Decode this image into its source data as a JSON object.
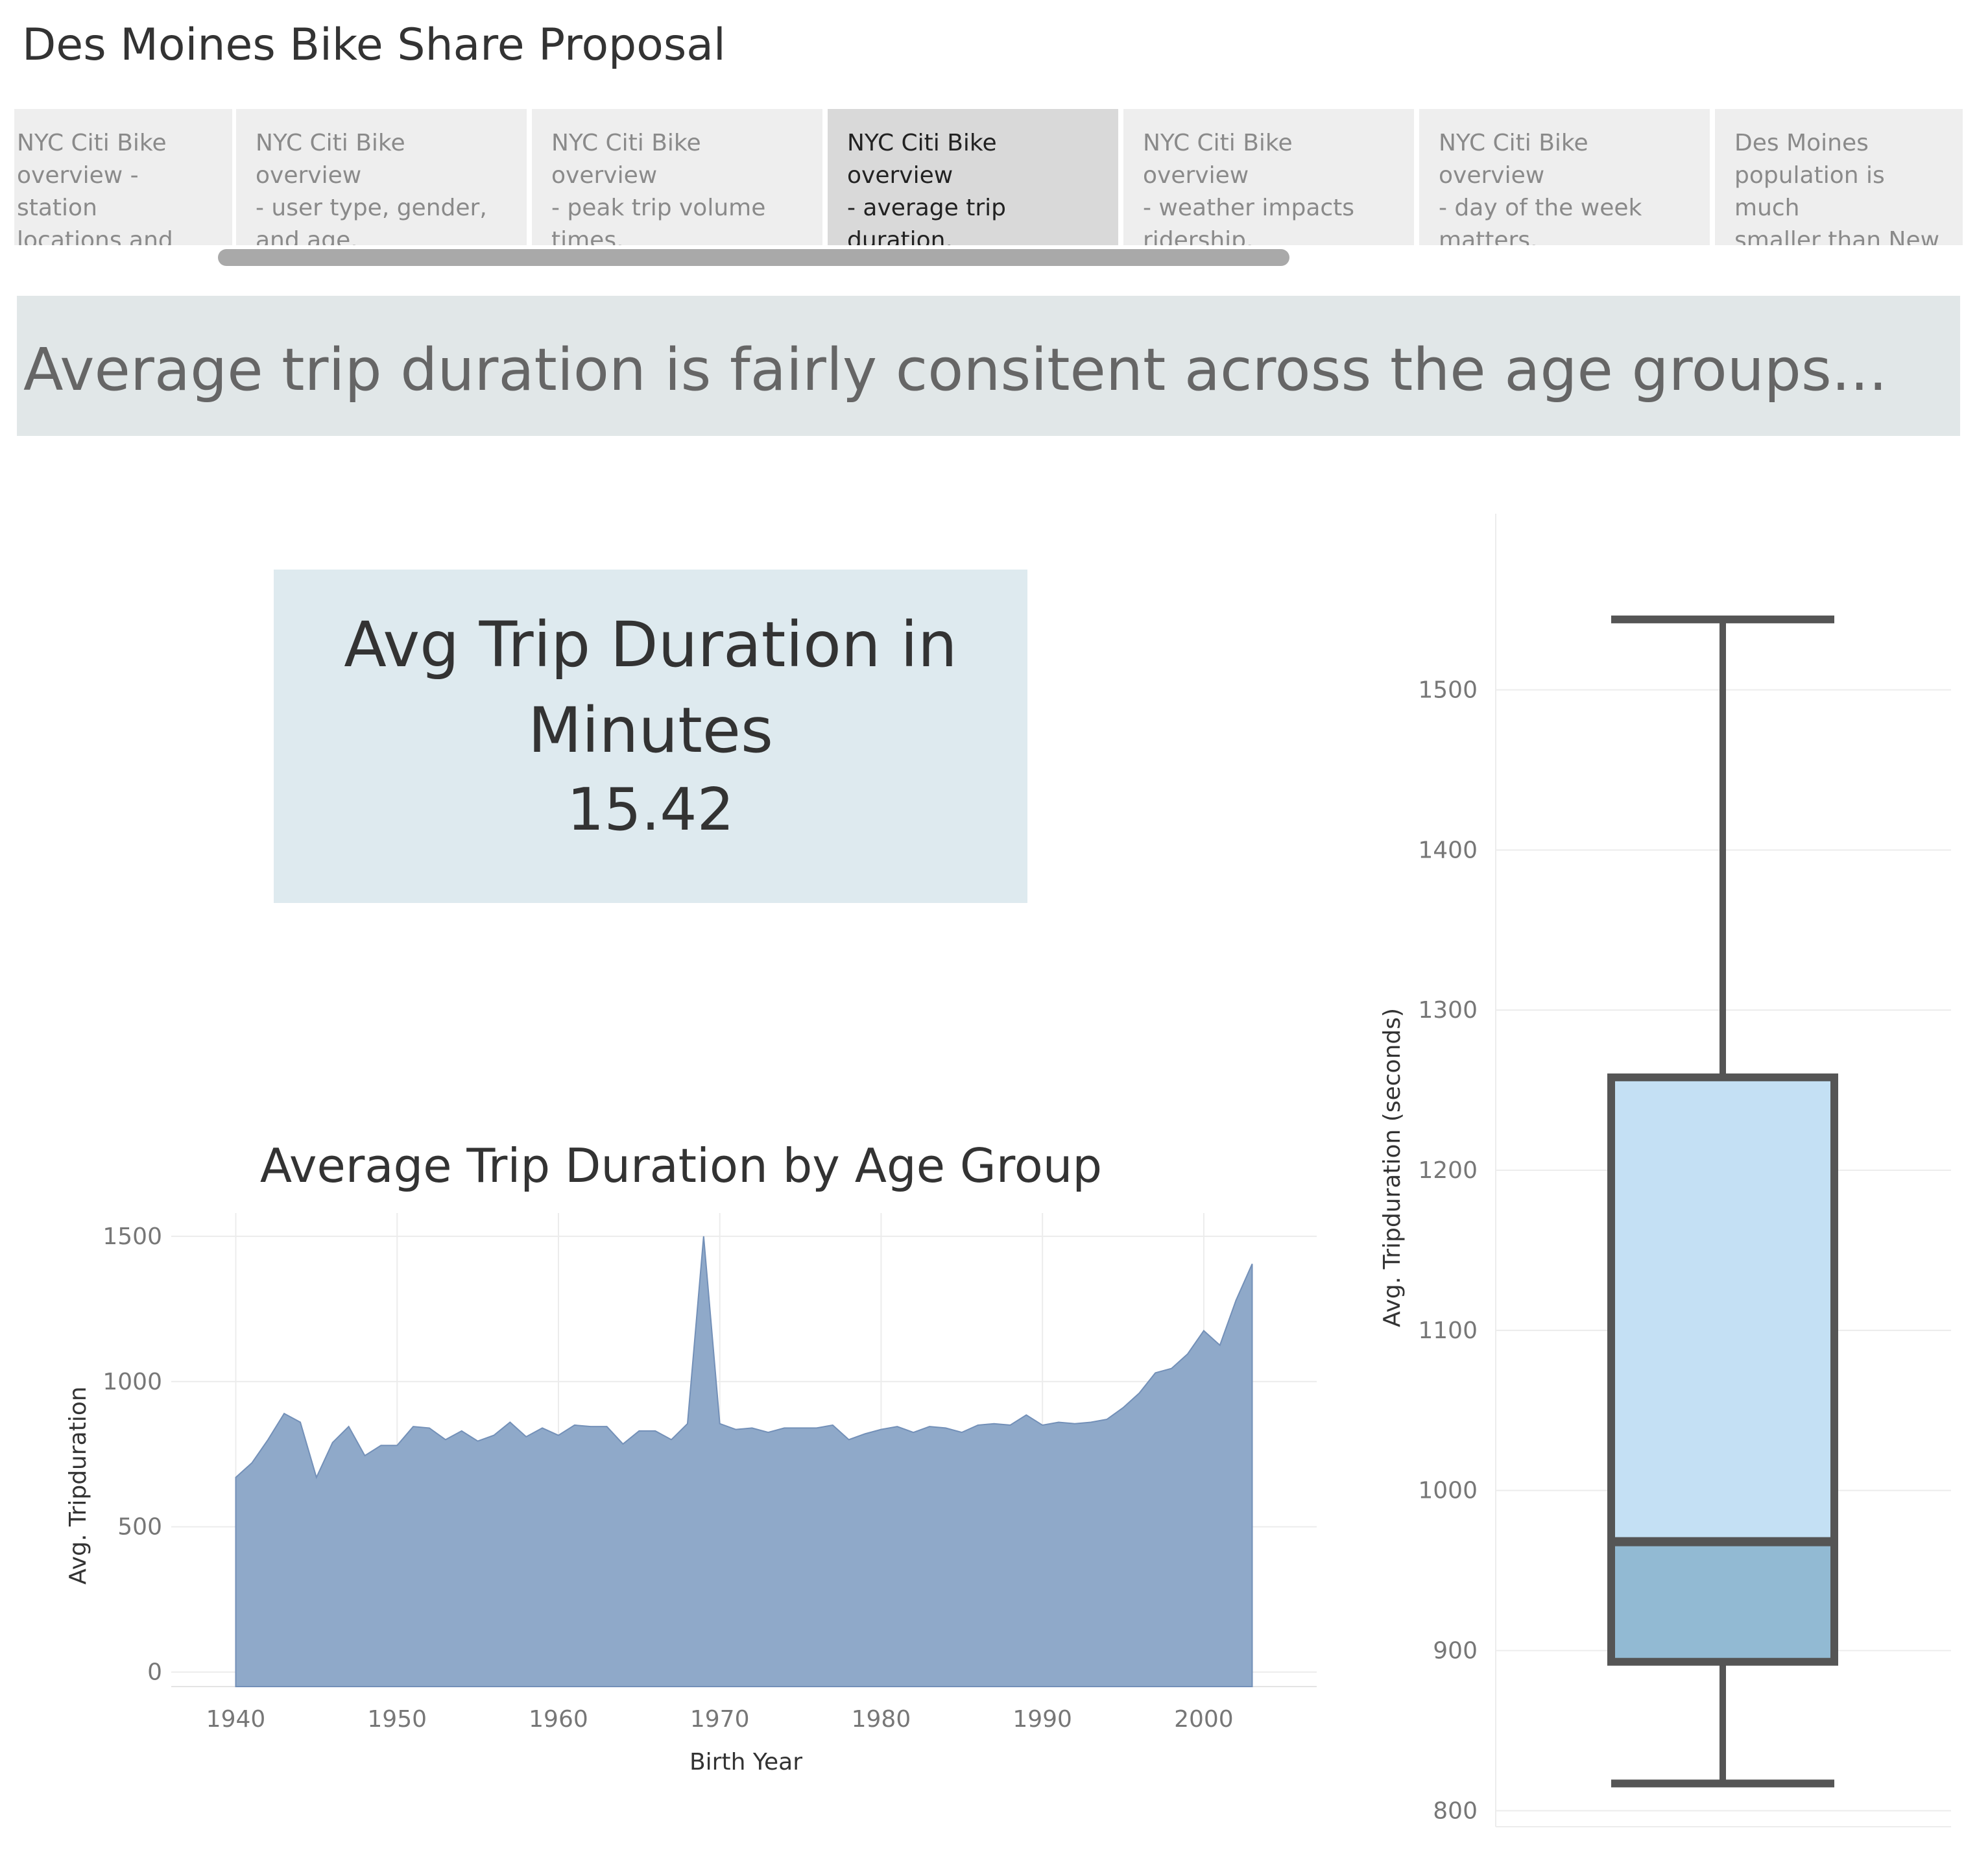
{
  "story": {
    "title": "Des Moines Bike Share Proposal",
    "points": [
      {
        "lines": [
          "NYC Citi Bike",
          "overview - station",
          "locations and us.."
        ]
      },
      {
        "lines": [
          "NYC Citi Bike overview",
          "- user type, gender,",
          "and age."
        ]
      },
      {
        "lines": [
          "NYC Citi Bike overview",
          "- peak trip volume",
          "times."
        ]
      },
      {
        "lines": [
          "NYC Citi Bike overview",
          "- average trip",
          "duration."
        ],
        "active": true
      },
      {
        "lines": [
          "NYC Citi Bike overview",
          "- weather impacts",
          "ridership."
        ]
      },
      {
        "lines": [
          "NYC Citi Bike overview",
          "- day of the week",
          "matters."
        ]
      },
      {
        "lines": [
          "Des Moines",
          "population is much",
          "smaller than New Y.."
        ]
      }
    ]
  },
  "caption": "Average trip duration is fairly consitent across the age groups...",
  "kpi": {
    "title_line1": "Avg Trip Duration in",
    "title_line2": "Minutes",
    "value": "15.42"
  },
  "colors": {
    "area_fill": "#8fa9c9",
    "area_stroke": "#7390b8",
    "box_upper": "#c4e0f4",
    "box_lower": "#92bad3",
    "box_stroke": "#555555"
  },
  "chart_data": [
    {
      "type": "area",
      "title": "Average Trip Duration by Age Group",
      "xlabel": "Birth Year",
      "ylabel": "Avg. Tripduration",
      "xlim": [
        1936,
        2007
      ],
      "ylim": [
        -50,
        1580
      ],
      "xticks": [
        "1940",
        "1950",
        "1960",
        "1970",
        "1980",
        "1990",
        "2000"
      ],
      "yticks": [
        "0",
        "500",
        "1000",
        "1500"
      ],
      "grid": true,
      "x": [
        1940,
        1941,
        1942,
        1943,
        1944,
        1945,
        1946,
        1947,
        1948,
        1949,
        1950,
        1951,
        1952,
        1953,
        1954,
        1955,
        1956,
        1957,
        1958,
        1959,
        1960,
        1961,
        1962,
        1963,
        1964,
        1965,
        1966,
        1967,
        1968,
        1969,
        1970,
        1971,
        1972,
        1973,
        1974,
        1975,
        1976,
        1977,
        1978,
        1979,
        1980,
        1981,
        1982,
        1983,
        1984,
        1985,
        1986,
        1987,
        1988,
        1989,
        1990,
        1991,
        1992,
        1993,
        1994,
        1995,
        1996,
        1997,
        1998,
        1999,
        2000,
        2001,
        2002,
        2003
      ],
      "values": [
        670,
        720,
        800,
        890,
        860,
        670,
        790,
        845,
        745,
        780,
        780,
        845,
        840,
        800,
        830,
        795,
        815,
        860,
        810,
        840,
        815,
        850,
        845,
        845,
        785,
        830,
        830,
        800,
        855,
        1500,
        855,
        835,
        840,
        825,
        840,
        840,
        840,
        850,
        800,
        820,
        835,
        845,
        825,
        845,
        840,
        825,
        850,
        855,
        850,
        885,
        850,
        860,
        855,
        860,
        870,
        910,
        960,
        1030,
        1045,
        1095,
        1175,
        1125,
        1280,
        1405
      ]
    },
    {
      "type": "box",
      "ylabel": "Avg. Tripduration (seconds)",
      "ylim": [
        790,
        1610
      ],
      "yticks": [
        "800",
        "900",
        "1000",
        "1100",
        "1200",
        "1300",
        "1400",
        "1500"
      ],
      "whisker_low": 817,
      "q1": 893,
      "median": 968,
      "q3": 1258,
      "whisker_high": 1544
    }
  ]
}
